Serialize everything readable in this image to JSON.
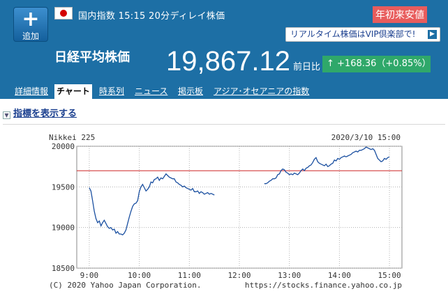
{
  "header": {
    "add_button": "追加",
    "meta": "国内指数 15:15 20分ディレイ株価",
    "badge": "年初来安値",
    "vip_link": "リアルタイム株価はVIP倶楽部で!",
    "index_name": "日経平均株価",
    "price": "19,867.12",
    "prev_label": "前日比",
    "change": "↑ +168.36（+0.85%）",
    "colors": {
      "header_bg": "#1d6fa5",
      "badge": "#e85c5c",
      "change_bg": "#2fa86a"
    }
  },
  "tabs": [
    {
      "label": "詳細情報"
    },
    {
      "label": "チャート"
    },
    {
      "label": "時系列"
    },
    {
      "label": "ニュース"
    },
    {
      "label": "掲示板"
    },
    {
      "label": "アジア･オセアニアの指数"
    }
  ],
  "toggle_label": "指標を表示する",
  "chart_data": {
    "type": "line",
    "title": "Nikkei 225",
    "timestamp": "2020/3/10  15:00",
    "footer_left": "(C) 2020 Yahoo Japan Corporation.",
    "footer_right": "https://stocks.finance.yahoo.co.jp",
    "xlim": [
      "08:45",
      "15:15"
    ],
    "ylim": [
      18500,
      20000
    ],
    "x_ticks": [
      "9:00",
      "10:00",
      "11:00",
      "12:00",
      "13:00",
      "14:00",
      "15:00"
    ],
    "y_ticks": [
      "20000",
      "19500",
      "19000",
      "18500"
    ],
    "reference_line": 19699,
    "reference_color": "#cc2222",
    "line_color": "#1a4fa0",
    "grid": true,
    "series": [
      {
        "session": "morning",
        "x": [
          "09:00",
          "09:02",
          "09:04",
          "09:06",
          "09:08",
          "09:10",
          "09:12",
          "09:14",
          "09:16",
          "09:18",
          "09:20",
          "09:22",
          "09:24",
          "09:26",
          "09:28",
          "09:30",
          "09:32",
          "09:34",
          "09:36",
          "09:38",
          "09:40",
          "09:42",
          "09:44",
          "09:46",
          "09:48",
          "09:50",
          "09:52",
          "09:54",
          "09:56",
          "09:58",
          "10:00",
          "10:02",
          "10:04",
          "10:06",
          "10:08",
          "10:10",
          "10:12",
          "10:14",
          "10:16",
          "10:18",
          "10:20",
          "10:22",
          "10:24",
          "10:26",
          "10:28",
          "10:30",
          "10:32",
          "10:34",
          "10:36",
          "10:38",
          "10:40",
          "10:42",
          "10:44",
          "10:46",
          "10:48",
          "10:50",
          "10:52",
          "10:54",
          "10:56",
          "10:58",
          "11:00",
          "11:02",
          "11:04",
          "11:06",
          "11:08",
          "11:10",
          "11:12",
          "11:14",
          "11:16",
          "11:18",
          "11:20",
          "11:22",
          "11:24",
          "11:26",
          "11:28",
          "11:30"
        ],
        "values": [
          19490,
          19450,
          19330,
          19200,
          19110,
          19060,
          19080,
          19020,
          19060,
          19090,
          19050,
          19010,
          18990,
          19000,
          18970,
          18980,
          18930,
          18950,
          18920,
          18920,
          18910,
          18930,
          18970,
          19050,
          19130,
          19200,
          19260,
          19290,
          19300,
          19330,
          19440,
          19500,
          19530,
          19490,
          19450,
          19470,
          19500,
          19560,
          19550,
          19590,
          19600,
          19620,
          19580,
          19610,
          19600,
          19630,
          19660,
          19640,
          19620,
          19610,
          19600,
          19600,
          19560,
          19550,
          19530,
          19520,
          19500,
          19510,
          19490,
          19480,
          19470,
          19460,
          19480,
          19440,
          19440,
          19450,
          19420,
          19440,
          19430,
          19410,
          19420,
          19430,
          19410,
          19420,
          19410,
          19400
        ]
      },
      {
        "session": "afternoon",
        "x": [
          "12:30",
          "12:32",
          "12:34",
          "12:36",
          "12:38",
          "12:40",
          "12:42",
          "12:44",
          "12:46",
          "12:48",
          "12:50",
          "12:52",
          "12:54",
          "12:56",
          "12:58",
          "13:00",
          "13:02",
          "13:04",
          "13:06",
          "13:08",
          "13:10",
          "13:12",
          "13:14",
          "13:16",
          "13:18",
          "13:20",
          "13:22",
          "13:24",
          "13:26",
          "13:28",
          "13:30",
          "13:32",
          "13:34",
          "13:36",
          "13:38",
          "13:40",
          "13:42",
          "13:44",
          "13:46",
          "13:48",
          "13:50",
          "13:52",
          "13:54",
          "13:56",
          "13:58",
          "14:00",
          "14:02",
          "14:04",
          "14:06",
          "14:08",
          "14:10",
          "14:12",
          "14:14",
          "14:16",
          "14:18",
          "14:20",
          "14:22",
          "14:24",
          "14:26",
          "14:28",
          "14:30",
          "14:32",
          "14:34",
          "14:36",
          "14:38",
          "14:40",
          "14:42",
          "14:44",
          "14:46",
          "14:48",
          "14:50",
          "14:52",
          "14:54",
          "14:56",
          "14:58",
          "15:00"
        ],
        "values": [
          19540,
          19540,
          19550,
          19570,
          19580,
          19600,
          19600,
          19610,
          19650,
          19660,
          19700,
          19720,
          19710,
          19680,
          19670,
          19650,
          19660,
          19650,
          19670,
          19660,
          19650,
          19670,
          19700,
          19720,
          19700,
          19730,
          19740,
          19760,
          19770,
          19800,
          19840,
          19860,
          19810,
          19790,
          19780,
          19770,
          19760,
          19780,
          19750,
          19760,
          19780,
          19790,
          19830,
          19820,
          19850,
          19840,
          19860,
          19870,
          19880,
          19870,
          19880,
          19890,
          19900,
          19920,
          19930,
          19940,
          19930,
          19950,
          19950,
          19960,
          19970,
          19990,
          19980,
          19970,
          19960,
          19970,
          19950,
          19900,
          19850,
          19830,
          19810,
          19820,
          19850,
          19840,
          19860,
          19870
        ]
      }
    ]
  }
}
